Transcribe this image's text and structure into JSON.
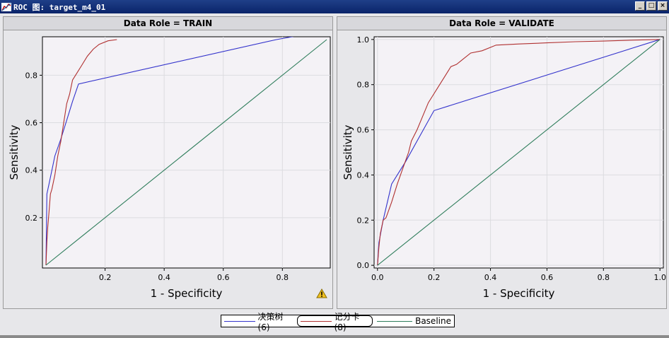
{
  "window": {
    "title": "ROC 图: target_m4_01",
    "buttons": [
      "_",
      "□",
      "×"
    ]
  },
  "legend": {
    "items": [
      {
        "label": "决策树 (6)",
        "color": "#3333cc"
      },
      {
        "label": "记分卡 (8)",
        "color": "#b03030"
      },
      {
        "label": "Baseline",
        "color": "#2e7d5b"
      }
    ]
  },
  "chart_data": [
    {
      "type": "line",
      "title": "Data Role = TRAIN",
      "xlabel": "1 - Specificity",
      "ylabel": "Sensitivity",
      "xlim": [
        0,
        0.95
      ],
      "ylim": [
        0,
        0.95
      ],
      "xticks": [
        "0.2",
        "0.4",
        "0.6",
        "0.8"
      ],
      "yticks": [
        "0.2",
        "0.4",
        "0.6",
        "0.8"
      ],
      "xtick_values": [
        0.2,
        0.4,
        0.6,
        0.8
      ],
      "ytick_values": [
        0.2,
        0.4,
        0.6,
        0.8
      ],
      "grid": true,
      "warning_icon": true,
      "series": [
        {
          "name": "决策树 (6)",
          "color": "#3333cc",
          "x": [
            0.0,
            0.003,
            0.01,
            0.03,
            0.05,
            0.07,
            0.09,
            0.11,
            0.78,
            1.0
          ],
          "y": [
            0.0,
            0.3,
            0.34,
            0.46,
            0.53,
            0.61,
            0.69,
            0.763,
            0.95,
            1.0
          ]
        },
        {
          "name": "记分卡 (8)",
          "color": "#b03030",
          "x": [
            0.0,
            0.003,
            0.006,
            0.01,
            0.015,
            0.02,
            0.03,
            0.04,
            0.05,
            0.06,
            0.07,
            0.08,
            0.09,
            0.1,
            0.12,
            0.14,
            0.16,
            0.18,
            0.21,
            0.24
          ],
          "y": [
            0.0,
            0.1,
            0.16,
            0.22,
            0.3,
            0.32,
            0.38,
            0.46,
            0.52,
            0.6,
            0.68,
            0.72,
            0.78,
            0.8,
            0.84,
            0.88,
            0.91,
            0.93,
            0.945,
            0.95
          ]
        },
        {
          "name": "Baseline",
          "color": "#2e7d5b",
          "x": [
            0.0,
            0.95
          ],
          "y": [
            0.0,
            0.95
          ]
        }
      ]
    },
    {
      "type": "line",
      "title": "Data Role = VALIDATE",
      "xlabel": "1 - Specificity",
      "ylabel": "Sensitivity",
      "xlim": [
        0,
        1.0
      ],
      "ylim": [
        0,
        1.0
      ],
      "xticks": [
        "0.0",
        "0.2",
        "0.4",
        "0.6",
        "0.8",
        "1.0"
      ],
      "yticks": [
        "0.0",
        "0.2",
        "0.4",
        "0.6",
        "0.8",
        "1.0"
      ],
      "xtick_values": [
        0.0,
        0.2,
        0.4,
        0.6,
        0.8,
        1.0
      ],
      "ytick_values": [
        0.0,
        0.2,
        0.4,
        0.6,
        0.8,
        1.0
      ],
      "grid": true,
      "warning_icon": false,
      "series": [
        {
          "name": "决策树 (6)",
          "color": "#3333cc",
          "x": [
            0.0,
            0.005,
            0.02,
            0.05,
            0.1,
            0.2,
            1.0
          ],
          "y": [
            0.0,
            0.1,
            0.2,
            0.36,
            0.46,
            0.685,
            1.0
          ]
        },
        {
          "name": "记分卡 (8)",
          "color": "#b03030",
          "x": [
            0.0,
            0.005,
            0.01,
            0.02,
            0.03,
            0.05,
            0.07,
            0.09,
            0.11,
            0.12,
            0.14,
            0.16,
            0.18,
            0.2,
            0.22,
            0.24,
            0.26,
            0.28,
            0.3,
            0.33,
            0.37,
            0.42,
            0.5,
            0.6,
            0.7,
            0.8,
            0.9,
            1.0
          ],
          "y": [
            0.0,
            0.08,
            0.14,
            0.2,
            0.21,
            0.28,
            0.36,
            0.43,
            0.5,
            0.55,
            0.6,
            0.66,
            0.72,
            0.76,
            0.8,
            0.84,
            0.88,
            0.89,
            0.91,
            0.94,
            0.95,
            0.975,
            0.98,
            0.985,
            0.99,
            0.993,
            0.997,
            1.0
          ]
        },
        {
          "name": "Baseline",
          "color": "#2e7d5b",
          "x": [
            0.0,
            1.0
          ],
          "y": [
            0.0,
            1.0
          ]
        }
      ]
    }
  ]
}
